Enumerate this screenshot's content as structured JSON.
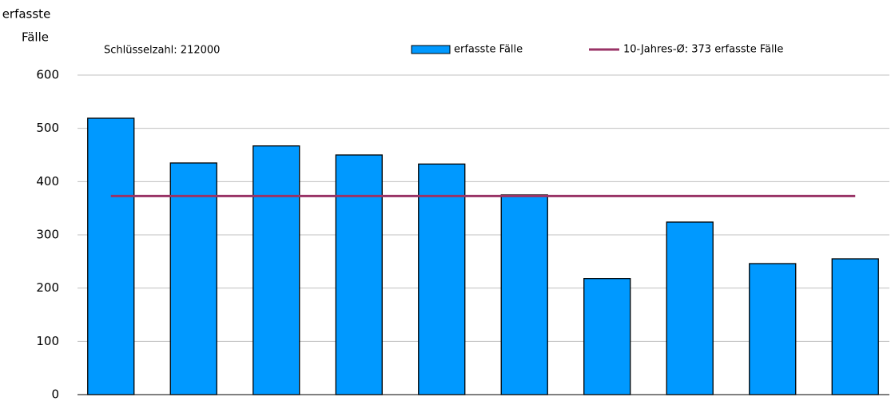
{
  "chart_data": {
    "type": "bar",
    "y_label": [
      "erfasste",
      "Fälle"
    ],
    "annotation": "Schlüsselzahl: 212000",
    "categories": [
      null,
      null,
      null,
      null,
      null,
      null,
      null,
      null,
      null,
      null
    ],
    "series": [
      {
        "name": "erfasste Fälle",
        "type": "bar",
        "color": "#0099ff",
        "values": [
          519,
          435,
          467,
          450,
          433,
          375,
          218,
          324,
          246,
          255
        ]
      },
      {
        "name": "10-Jahres-Ø: 373 erfasste Fälle",
        "type": "line",
        "color": "#993366",
        "values": [
          373,
          373,
          373,
          373,
          373,
          373,
          373,
          373,
          373,
          373
        ]
      }
    ],
    "ylim": [
      0,
      600
    ],
    "yticks": [
      0,
      100,
      200,
      300,
      400,
      500,
      600
    ],
    "grid": true
  }
}
